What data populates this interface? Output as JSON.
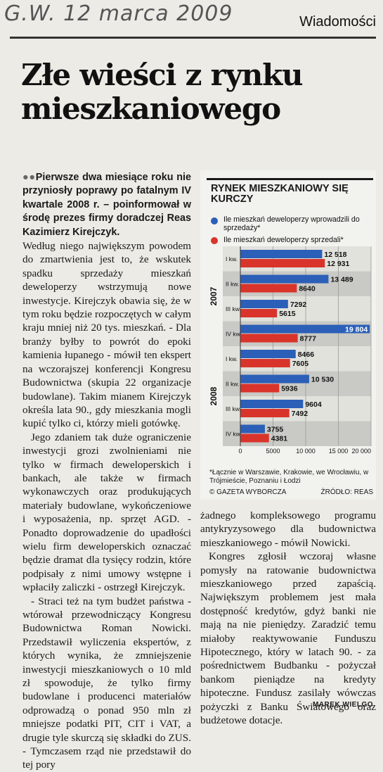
{
  "header": {
    "handwritten_note": "G.W. 12 marca 2009",
    "section": "Wiadomości"
  },
  "article": {
    "headline_line1": "Złe wieści z rynku",
    "headline_line2": "mieszkaniowego",
    "lead": "Pierwsze dwa miesiące roku nie przyniosły poprawy po fatalnym IV kwartale 2008 r. – poinformował w środę prezes firmy doradczej Reas Kazimierz Kirejczyk.",
    "col1_paragraphs": [
      "Według niego największym powodem do zmartwienia jest to, że wskutek spadku sprzedaży mieszkań deweloperzy wstrzymują nowe inwestycje. Kirejczyk obawia się, że w tym roku będzie rozpoczętych w całym kraju mniej niż 20 tys. mieszkań. - Dla branży byłby to powrót do epoki kamienia łupanego - mówił ten ekspert na wczorajszej konferencji Kongresu Budownictwa (skupia 22 organizacje budowlane). Takim mianem Kirejczyk określa lata 90., gdy mieszkania mogli kupić tylko ci, którzy mieli gotówkę.",
      "Jego zdaniem tak duże ograniczenie inwestycji grozi zwolnieniami nie tylko w firmach deweloperskich i bankach, ale także w firmach wykonawczych oraz produkujących materiały budowlane, wykończeniowe i wyposażenia, np. sprzęt AGD. - Ponadto doprowadzenie do upadłości wielu firm deweloperskich oznaczać będzie dramat dla tysięcy rodzin, które podpisały z nimi umowy wstępne i wpłaciły zaliczki - ostrzegł Kirejczyk.",
      "- Straci też na tym budżet państwa - wtórował przewodniczący Kongresu Budownictwa Roman Nowicki. Przedstawił wyliczenia ekspertów, z których wynika, że zmniejszenie inwestycji mieszkaniowych o 10 mld zł spowoduje, że tylko firmy budowlane i producenci materiałów odprowadzą o ponad 950 mln zł mniejsze podatki PIT, CIT i VAT, a drugie tyle skurczą się składki do ZUS. - Tymczasem rząd nie przedstawił do tej pory"
    ],
    "col2_paragraphs": [
      "żadnego kompleksowego programu antykryzysowego dla budownictwa mieszkaniowego - mówił Nowicki.",
      "Kongres zgłosił wczoraj własne pomysły na ratowanie budownictwa mieszkaniowego przed zapaścią. Największym problemem jest mała dostępność kredytów, gdyż banki nie mają na nie pieniędzy. Zaradzić temu miałoby reaktywowanie Funduszu Hipotecznego, który w latach 90. - za pośrednictwem Budbanku - pożyczał bankom pieniądze na kredyty hipoteczne. Fundusz zasilały wówczas pożyczki z Banku Światowego oraz budżetowe dotacje."
    ],
    "byline": "MAREK WIELGO"
  },
  "chart_data": {
    "type": "bar",
    "orientation": "horizontal",
    "title": "RYNEK MIESZKANIOWY SIĘ KURCZY",
    "groups": [
      "2007",
      "2008"
    ],
    "categories": [
      "I kw.",
      "II kw.",
      "III kw.",
      "IV kw.",
      "I kw.",
      "II kw.",
      "III kw.",
      "IV kw."
    ],
    "category_groups": [
      "2007",
      "2007",
      "2007",
      "2007",
      "2008",
      "2008",
      "2008",
      "2008"
    ],
    "series": [
      {
        "name": "Ile mieszkań deweloperzy wprowadzili do sprzedaży*",
        "color": "#2b5fb8",
        "values": [
          12518,
          13489,
          7292,
          19804,
          8466,
          10530,
          9604,
          3755
        ]
      },
      {
        "name": "Ile mieszkań deweloperzy sprzedali*",
        "color": "#d9342b",
        "values": [
          12931,
          8640,
          5615,
          8777,
          7605,
          5936,
          7492,
          4381
        ]
      }
    ],
    "value_labels": {
      "series0": [
        "12 518",
        "13 489",
        "7292",
        "19 804",
        "8466",
        "10 530",
        "9604",
        "3755"
      ],
      "series1": [
        "12 931",
        "8640",
        "5615",
        "8777",
        "7605",
        "5936",
        "7492",
        "4381"
      ]
    },
    "x_ticks": [
      0,
      5000,
      10000,
      15000,
      20000
    ],
    "x_tick_labels": [
      "0",
      "5000",
      "10 000",
      "15 000",
      "20 000"
    ],
    "xlim": [
      0,
      20000
    ],
    "grid": true,
    "legend_position": "top",
    "footnote": "*Łącznie w Warszawie, Krakowie, we Wrocławiu, w Trójmieście, Poznaniu i Łodzi",
    "copyright": "© GAZETA WYBORCZA",
    "source": "ŹRÓDŁO: REAS"
  }
}
